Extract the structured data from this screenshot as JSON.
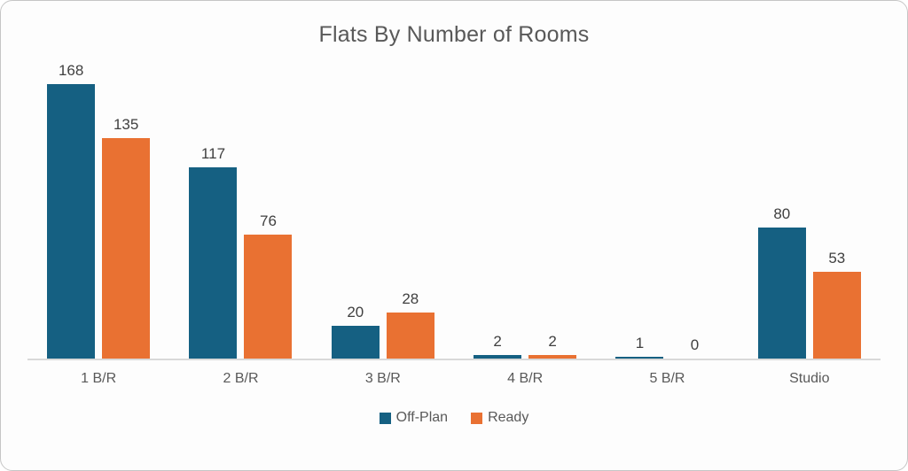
{
  "chart_data": {
    "type": "bar",
    "title": "Flats By Number of Rooms",
    "categories": [
      "1 B/R",
      "2 B/R",
      "3 B/R",
      "4 B/R",
      "5 B/R",
      "Studio"
    ],
    "series": [
      {
        "name": "Off-Plan",
        "color": "#156082",
        "values": [
          168,
          117,
          20,
          2,
          1,
          80
        ]
      },
      {
        "name": "Ready",
        "color": "#E97132",
        "values": [
          135,
          76,
          28,
          2,
          0,
          53
        ]
      }
    ],
    "ylim": [
      0,
      180
    ],
    "grid": false,
    "y_axis_visible": false,
    "legend_position": "bottom",
    "data_labels": true
  },
  "card": {
    "background": "#fdfdfd",
    "border_color": "#c6c6c6",
    "axis_line_color": "#d9d9d9",
    "title_color": "#595959",
    "label_color": "#404040"
  }
}
